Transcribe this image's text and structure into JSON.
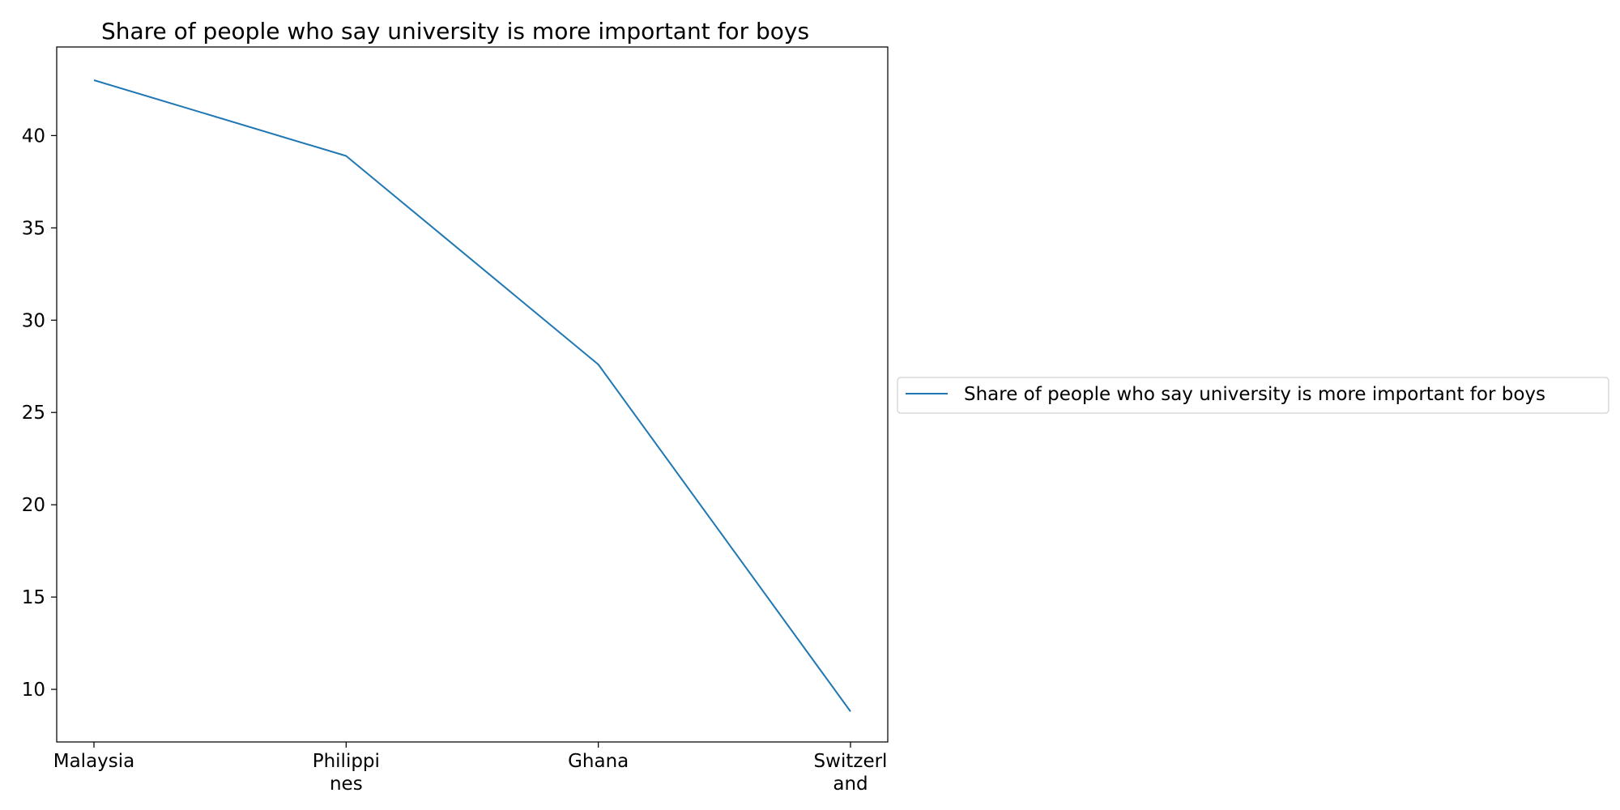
{
  "chart_data": {
    "type": "line",
    "title": "Share of people who say university is more important for boys",
    "xlabel": "",
    "ylabel": "",
    "categories": [
      [
        "Malaysia"
      ],
      [
        "Philippi",
        "nes"
      ],
      [
        "Ghana"
      ],
      [
        "Switzerl",
        "and"
      ]
    ],
    "series": [
      {
        "name": "Share of people who say university is more important for boys",
        "values": [
          43.0,
          38.9,
          27.6,
          8.8
        ],
        "color": "#1f77b4"
      }
    ],
    "ylim": [
      7.15,
      44.8
    ],
    "yticks": [
      10,
      15,
      20,
      25,
      30,
      35,
      40
    ],
    "grid": false,
    "legend_position": "right-center"
  }
}
